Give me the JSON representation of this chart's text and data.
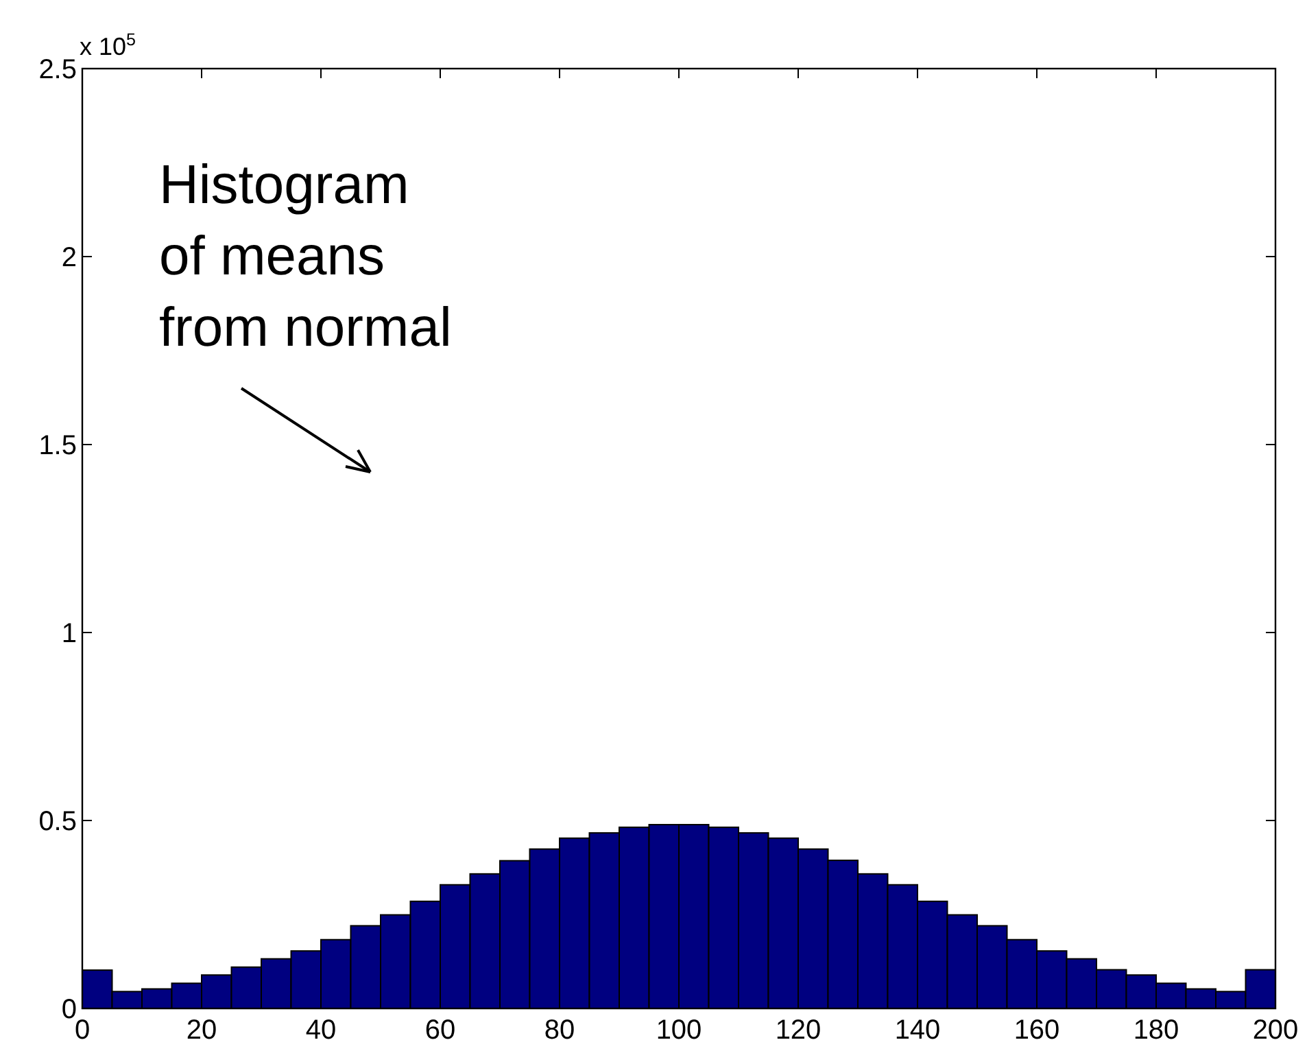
{
  "chart_data": {
    "type": "histogram",
    "bins": [
      0,
      5,
      10,
      15,
      20,
      25,
      30,
      35,
      40,
      45,
      50,
      55,
      60,
      65,
      70,
      75,
      80,
      85,
      90,
      95,
      100,
      105,
      110,
      115,
      120,
      125,
      130,
      135,
      140,
      145,
      150,
      155,
      160,
      165,
      170,
      175,
      180,
      185,
      190,
      195,
      200
    ],
    "values": [
      0.102,
      0.045,
      0.052,
      0.067,
      0.089,
      0.11,
      0.132,
      0.153,
      0.183,
      0.22,
      0.249,
      0.285,
      0.329,
      0.358,
      0.393,
      0.424,
      0.453,
      0.467,
      0.482,
      0.489,
      0.489,
      0.482,
      0.467,
      0.453,
      0.424,
      0.394,
      0.358,
      0.329,
      0.285,
      0.249,
      0.22,
      0.183,
      0.153,
      0.132,
      0.103,
      0.089,
      0.067,
      0.052,
      0.045,
      0.103
    ],
    "color": "#000080",
    "xlim": [
      0,
      200
    ],
    "xticks": [
      0,
      20,
      40,
      60,
      80,
      100,
      120,
      140,
      160,
      180,
      200
    ],
    "ylim": [
      0,
      2.5
    ],
    "yticks": [
      0,
      0.5,
      1,
      1.5,
      2,
      2.5
    ],
    "annotations": [
      "x 10$^{5}$",
      "Histogram\nof means\nfrom normal"
    ]
  }
}
